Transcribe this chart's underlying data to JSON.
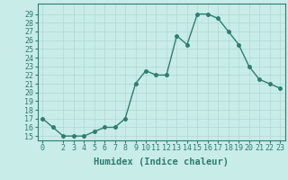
{
  "x": [
    0,
    1,
    2,
    3,
    4,
    5,
    6,
    7,
    8,
    9,
    10,
    11,
    12,
    13,
    14,
    15,
    16,
    17,
    18,
    19,
    20,
    21,
    22,
    23
  ],
  "y": [
    17,
    16,
    15,
    15,
    15,
    15.5,
    16,
    16,
    17,
    21,
    22.5,
    22,
    22,
    26.5,
    25.5,
    29,
    29,
    28.5,
    27,
    25.5,
    23,
    21.5,
    21,
    20.5
  ],
  "line_color": "#2e7d6e",
  "marker_color": "#2e7d6e",
  "bg_color": "#c8ece8",
  "grid_color": "#b0d8d4",
  "xlabel": "Humidex (Indice chaleur)",
  "xlim": [
    -0.5,
    23.5
  ],
  "ylim": [
    14.5,
    30.2
  ],
  "yticks": [
    15,
    16,
    17,
    18,
    19,
    20,
    21,
    22,
    23,
    24,
    25,
    26,
    27,
    28,
    29
  ],
  "xticks": [
    0,
    2,
    3,
    4,
    5,
    6,
    7,
    8,
    9,
    10,
    11,
    12,
    13,
    14,
    15,
    16,
    17,
    18,
    19,
    20,
    21,
    22,
    23
  ],
  "xlabel_fontsize": 7.5,
  "tick_fontsize": 6,
  "marker_size": 2.5,
  "line_width": 1.0
}
